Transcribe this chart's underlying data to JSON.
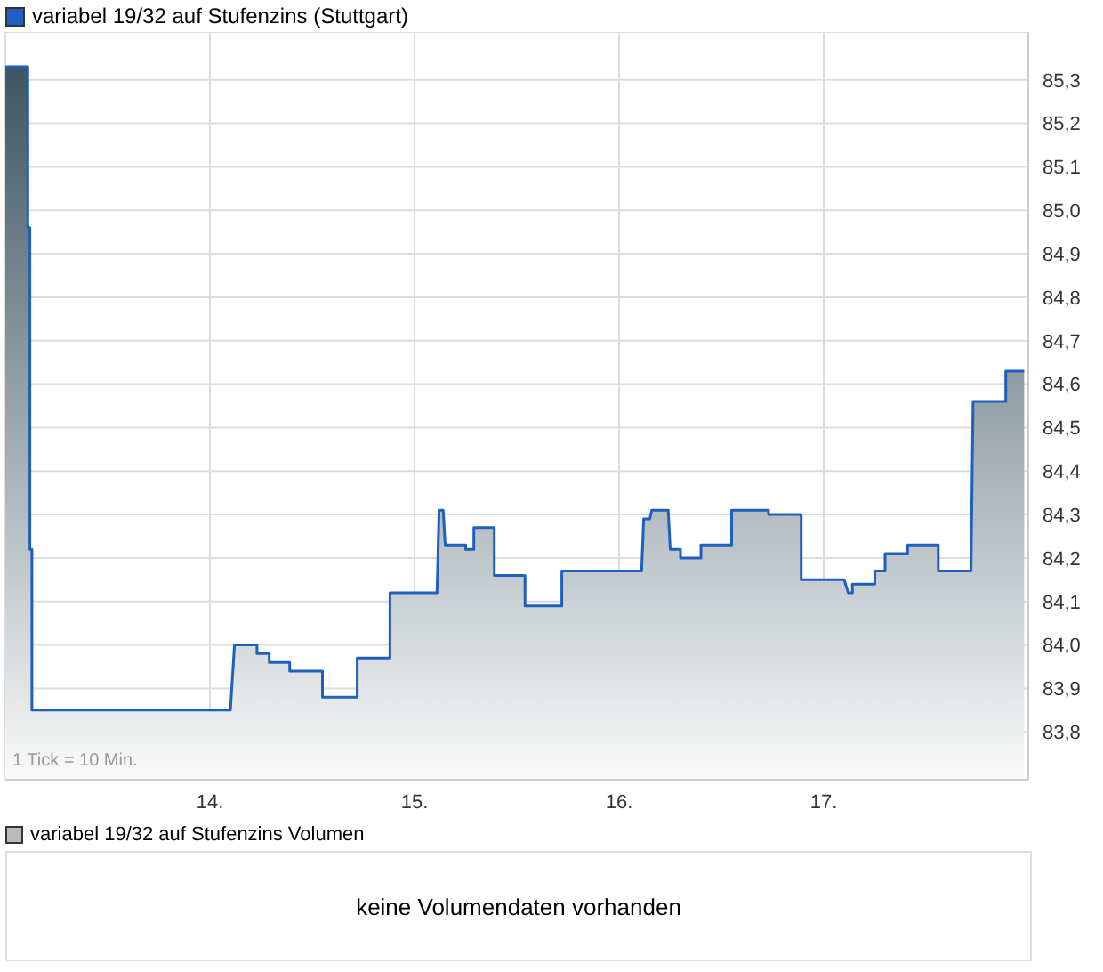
{
  "chart_data": [
    {
      "type": "area",
      "annotations": [
        "1 Tick = 10 Min."
      ],
      "legend": "top left",
      "grid": true,
      "xlim": [
        13,
        18
      ],
      "xticks": [
        {
          "value": 14,
          "label": "14."
        },
        {
          "value": 15,
          "label": "15."
        },
        {
          "value": 16,
          "label": "16."
        },
        {
          "value": 17,
          "label": "17."
        }
      ],
      "ylim": [
        83.69,
        85.41
      ],
      "yticks": [
        {
          "value": 83.8,
          "label": "83,8"
        },
        {
          "value": 83.9,
          "label": "83,9"
        },
        {
          "value": 84.0,
          "label": "84,0"
        },
        {
          "value": 84.1,
          "label": "84,1"
        },
        {
          "value": 84.2,
          "label": "84,2"
        },
        {
          "value": 84.3,
          "label": "84,3"
        },
        {
          "value": 84.4,
          "label": "84,4"
        },
        {
          "value": 84.5,
          "label": "84,5"
        },
        {
          "value": 84.6,
          "label": "84,6"
        },
        {
          "value": 84.7,
          "label": "84,7"
        },
        {
          "value": 84.8,
          "label": "84,8"
        },
        {
          "value": 84.9,
          "label": "84,9"
        },
        {
          "value": 85.0,
          "label": "85,0"
        },
        {
          "value": 85.1,
          "label": "85,1"
        },
        {
          "value": 85.2,
          "label": "85,2"
        },
        {
          "value": 85.3,
          "label": "85,3"
        }
      ],
      "series": [
        {
          "name": "variabel 19/32 auf Stufenzins (Stuttgart)",
          "color": "#1f5fbf",
          "x": [
            13.0,
            13.11,
            13.11,
            13.12,
            13.12,
            13.13,
            13.13,
            14.1,
            14.12,
            14.23,
            14.23,
            14.29,
            14.29,
            14.39,
            14.39,
            14.55,
            14.55,
            14.72,
            14.72,
            14.88,
            14.88,
            15.11,
            15.12,
            15.14,
            15.15,
            15.25,
            15.25,
            15.29,
            15.29,
            15.39,
            15.39,
            15.54,
            15.54,
            15.72,
            15.72,
            16.11,
            16.12,
            16.15,
            16.16,
            16.24,
            16.25,
            16.3,
            16.3,
            16.4,
            16.4,
            16.55,
            16.55,
            16.73,
            16.73,
            16.89,
            16.89,
            17.1,
            17.12,
            17.14,
            17.14,
            17.25,
            17.25,
            17.3,
            17.3,
            17.41,
            17.41,
            17.56,
            17.56,
            17.72,
            17.73,
            17.89,
            17.89,
            17.98
          ],
          "values": [
            85.33,
            85.33,
            84.96,
            84.96,
            84.22,
            84.22,
            83.85,
            83.85,
            84.0,
            84.0,
            83.98,
            83.98,
            83.96,
            83.96,
            83.94,
            83.94,
            83.88,
            83.88,
            83.97,
            83.97,
            84.12,
            84.12,
            84.31,
            84.31,
            84.23,
            84.23,
            84.22,
            84.22,
            84.27,
            84.27,
            84.16,
            84.16,
            84.09,
            84.09,
            84.17,
            84.17,
            84.29,
            84.29,
            84.31,
            84.31,
            84.22,
            84.22,
            84.2,
            84.2,
            84.23,
            84.23,
            84.31,
            84.31,
            84.3,
            84.3,
            84.15,
            84.15,
            84.12,
            84.12,
            84.14,
            84.14,
            84.17,
            84.17,
            84.21,
            84.21,
            84.23,
            84.23,
            84.17,
            84.17,
            84.56,
            84.56,
            84.63,
            84.63
          ]
        }
      ]
    },
    {
      "type": "other",
      "title": "variabel 19/32 auf Stufenzins Volumen",
      "annotations": [
        "keine Volumendaten vorhanden"
      ]
    }
  ]
}
